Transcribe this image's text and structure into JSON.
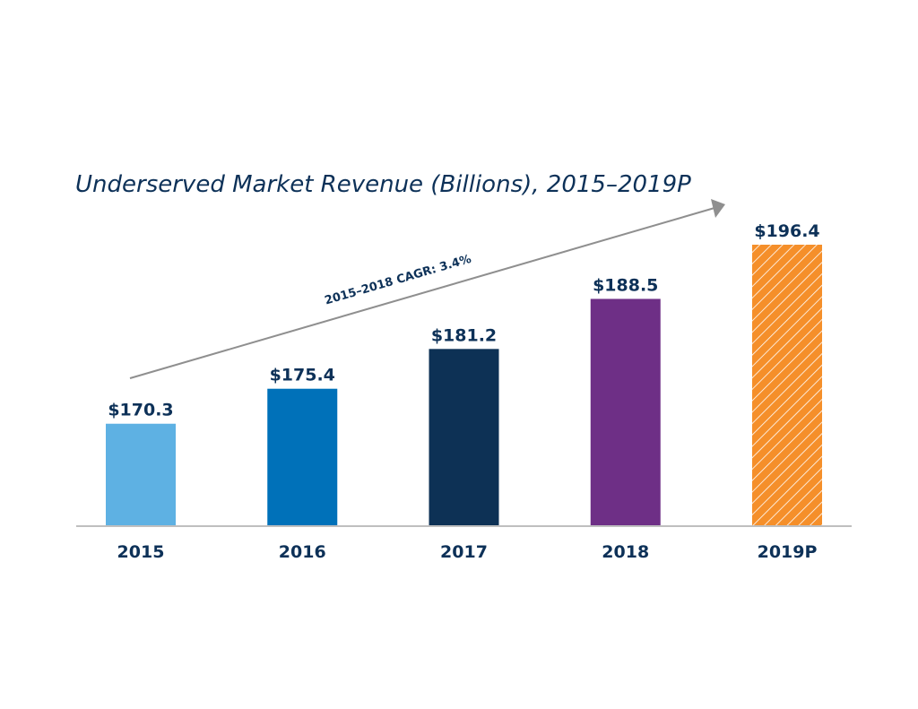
{
  "chart_data": {
    "type": "bar",
    "title": "Underserved Market Revenue (Billions), 2015–2019P",
    "categories": [
      "2015",
      "2016",
      "2017",
      "2018",
      "2019P"
    ],
    "values": [
      170.3,
      175.4,
      181.2,
      188.5,
      196.4
    ],
    "data_labels": [
      "$170.3",
      "$175.4",
      "$181.2",
      "$188.5",
      "$196.4"
    ],
    "colors": [
      "#5eb1e3",
      "#0071b9",
      "#0d3155",
      "#6e2f86",
      "#f58f2a"
    ],
    "hatched": [
      false,
      false,
      false,
      false,
      true
    ],
    "annotation": "2015–2018 CAGR: 3.4%",
    "xlabel": "",
    "ylabel": "",
    "ylim": [
      155.5,
      200
    ],
    "grid": false
  }
}
